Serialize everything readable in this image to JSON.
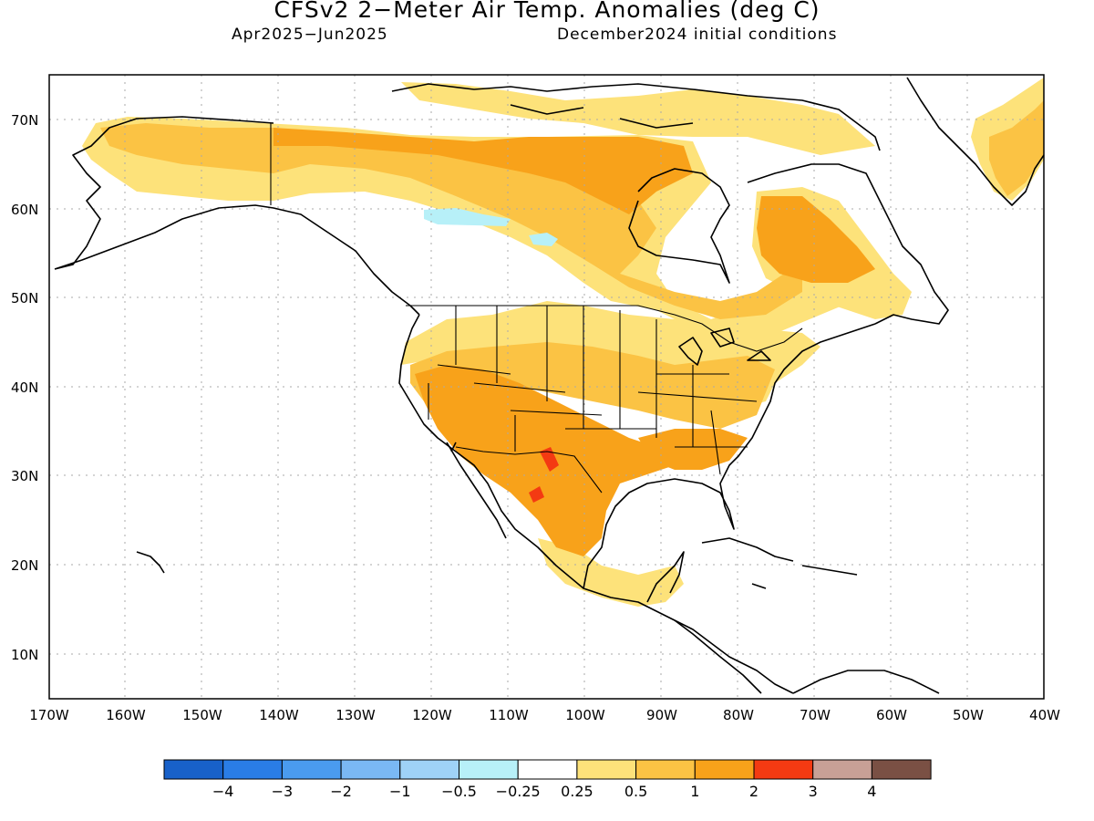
{
  "header": {
    "title": "CFSv2 2−Meter Air Temp. Anomalies (deg C)",
    "period": "Apr2025−Jun2025",
    "init": "December2024 initial conditions"
  },
  "axes": {
    "lat_labels": [
      "70N",
      "60N",
      "50N",
      "40N",
      "30N",
      "20N",
      "10N"
    ],
    "lon_labels": [
      "170W",
      "160W",
      "150W",
      "140W",
      "130W",
      "120W",
      "110W",
      "100W",
      "90W",
      "80W",
      "70W",
      "60W",
      "50W",
      "40W"
    ]
  },
  "colorbar": {
    "colors": [
      "#1861c9",
      "#2a7de6",
      "#4a9bef",
      "#7ab8f4",
      "#9fd2f7",
      "#b7f0f8",
      "#ffffff",
      "#fde27a",
      "#fbc344",
      "#f8a21a",
      "#f43a12",
      "#c8a096",
      "#7a5044"
    ],
    "labels": [
      "−4",
      "−3",
      "−2",
      "−1",
      "−0.5",
      "−0.25",
      "0.25",
      "0.5",
      "1",
      "2",
      "3",
      "4"
    ]
  },
  "anomaly_colors": {
    "light_orange": "#fde27a",
    "orange": "#fbc344",
    "dark_orange": "#f8a21a",
    "red": "#f43a12",
    "light_blue": "#b7f0f8"
  }
}
